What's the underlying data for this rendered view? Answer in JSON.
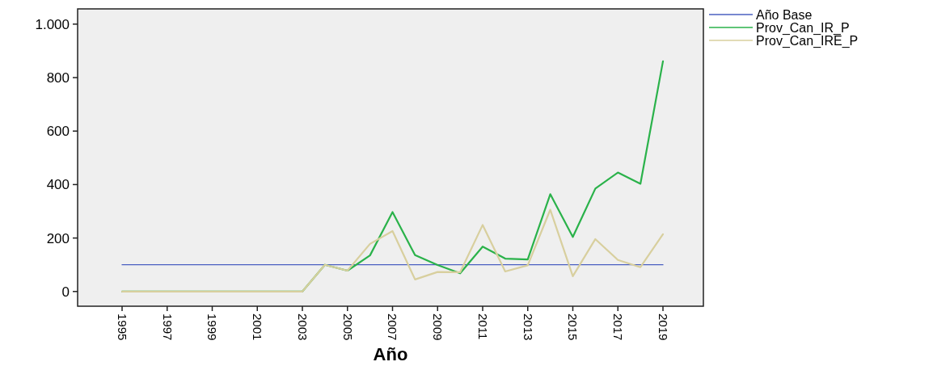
{
  "chart_data": {
    "type": "line",
    "xlabel": "Año",
    "categories": [
      "1995",
      null,
      "1997",
      null,
      "1999",
      null,
      "2001",
      null,
      "2003",
      null,
      "2005",
      null,
      "2007",
      null,
      "2009",
      null,
      "2011",
      null,
      "2013",
      null,
      "2015",
      null,
      "2017",
      null,
      "2019"
    ],
    "series": [
      {
        "name": "Año Base",
        "color": "#4a5fc1",
        "values": [
          100,
          100,
          100,
          100,
          100,
          100,
          100,
          100,
          100,
          100,
          100,
          100,
          100,
          100,
          100,
          100,
          100,
          100,
          100,
          100,
          100,
          100,
          100,
          100,
          100
        ]
      },
      {
        "name": "Prov_Can_IR_P",
        "color": "#2ab24a",
        "values": [
          0,
          0,
          0,
          0,
          0,
          0,
          0,
          0,
          0,
          100,
          78,
          135,
          297,
          136,
          99,
          68,
          168,
          123,
          120,
          364,
          204,
          385,
          445,
          403,
          861
        ]
      },
      {
        "name": "Prov_Can_IRE_P",
        "color": "#d8cf9e",
        "values": [
          0,
          0,
          0,
          0,
          0,
          0,
          0,
          0,
          0,
          100,
          78,
          178,
          226,
          45,
          73,
          72,
          249,
          75,
          98,
          306,
          57,
          196,
          118,
          91,
          214
        ]
      }
    ],
    "ylim": [
      -55,
      1057
    ],
    "yticks": [
      0,
      200,
      400,
      600,
      800,
      {
        "value": 1000,
        "label": "1.000"
      }
    ],
    "grid": false,
    "legend": "top right",
    "marker": "none",
    "line_style": "solid"
  }
}
